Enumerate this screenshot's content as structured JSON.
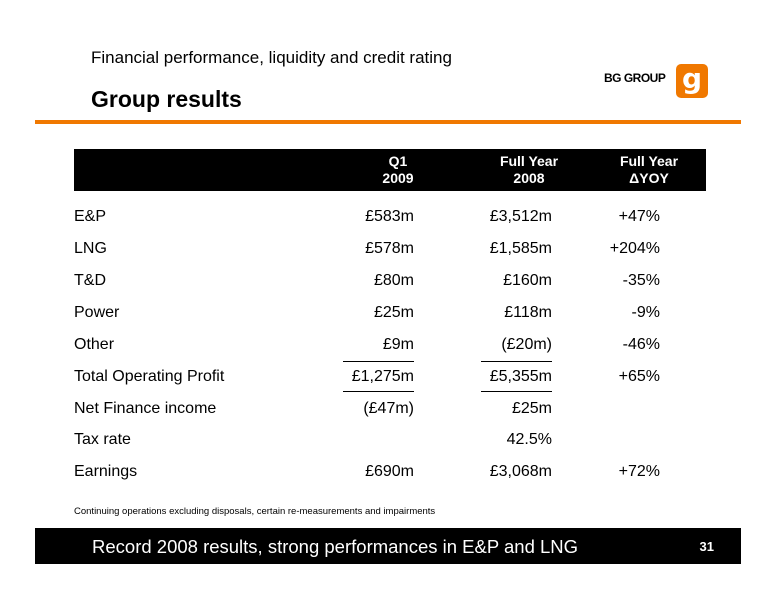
{
  "header": {
    "subtitle": "Financial performance, liquidity and credit rating",
    "title": "Group results",
    "logo_text": "BG GROUP",
    "logo_mark": "g"
  },
  "colors": {
    "accent": "#f07800",
    "bar": "#000000"
  },
  "table": {
    "columns": [
      {
        "line1": "Q1",
        "line2": "2009"
      },
      {
        "line1": "Full Year",
        "line2": "2008"
      },
      {
        "line1": "Full Year",
        "line2": "ΔYOY"
      }
    ],
    "rows": [
      {
        "label": "E&P",
        "q1": "£583m",
        "fy": "£3,512m",
        "yoy": "+47%"
      },
      {
        "label": "LNG",
        "q1": "£578m",
        "fy": "£1,585m",
        "yoy": "+204%"
      },
      {
        "label": "T&D",
        "q1": "£80m",
        "fy": "£160m",
        "yoy": "-35%"
      },
      {
        "label": "Power",
        "q1": "£25m",
        "fy": "£118m",
        "yoy": "-9%"
      },
      {
        "label": "Other",
        "q1": "£9m",
        "fy": "(£20m)",
        "yoy": "-46%"
      },
      {
        "label": "Total Operating Profit",
        "q1": "£1,275m",
        "fy": "£5,355m",
        "yoy": "+65%"
      },
      {
        "label": "Net Finance income",
        "q1": "(£47m)",
        "fy": "£25m",
        "yoy": ""
      },
      {
        "label": "Tax rate",
        "q1": "",
        "fy": "42.5%",
        "yoy": ""
      },
      {
        "label": "Earnings",
        "q1": "£690m",
        "fy": "£3,068m",
        "yoy": "+72%"
      }
    ]
  },
  "footnote": "Continuing operations excluding disposals, certain re-measurements and impairments",
  "footer": {
    "tagline": "Record 2008 results, strong performances in E&P and LNG",
    "page_number": "31"
  }
}
